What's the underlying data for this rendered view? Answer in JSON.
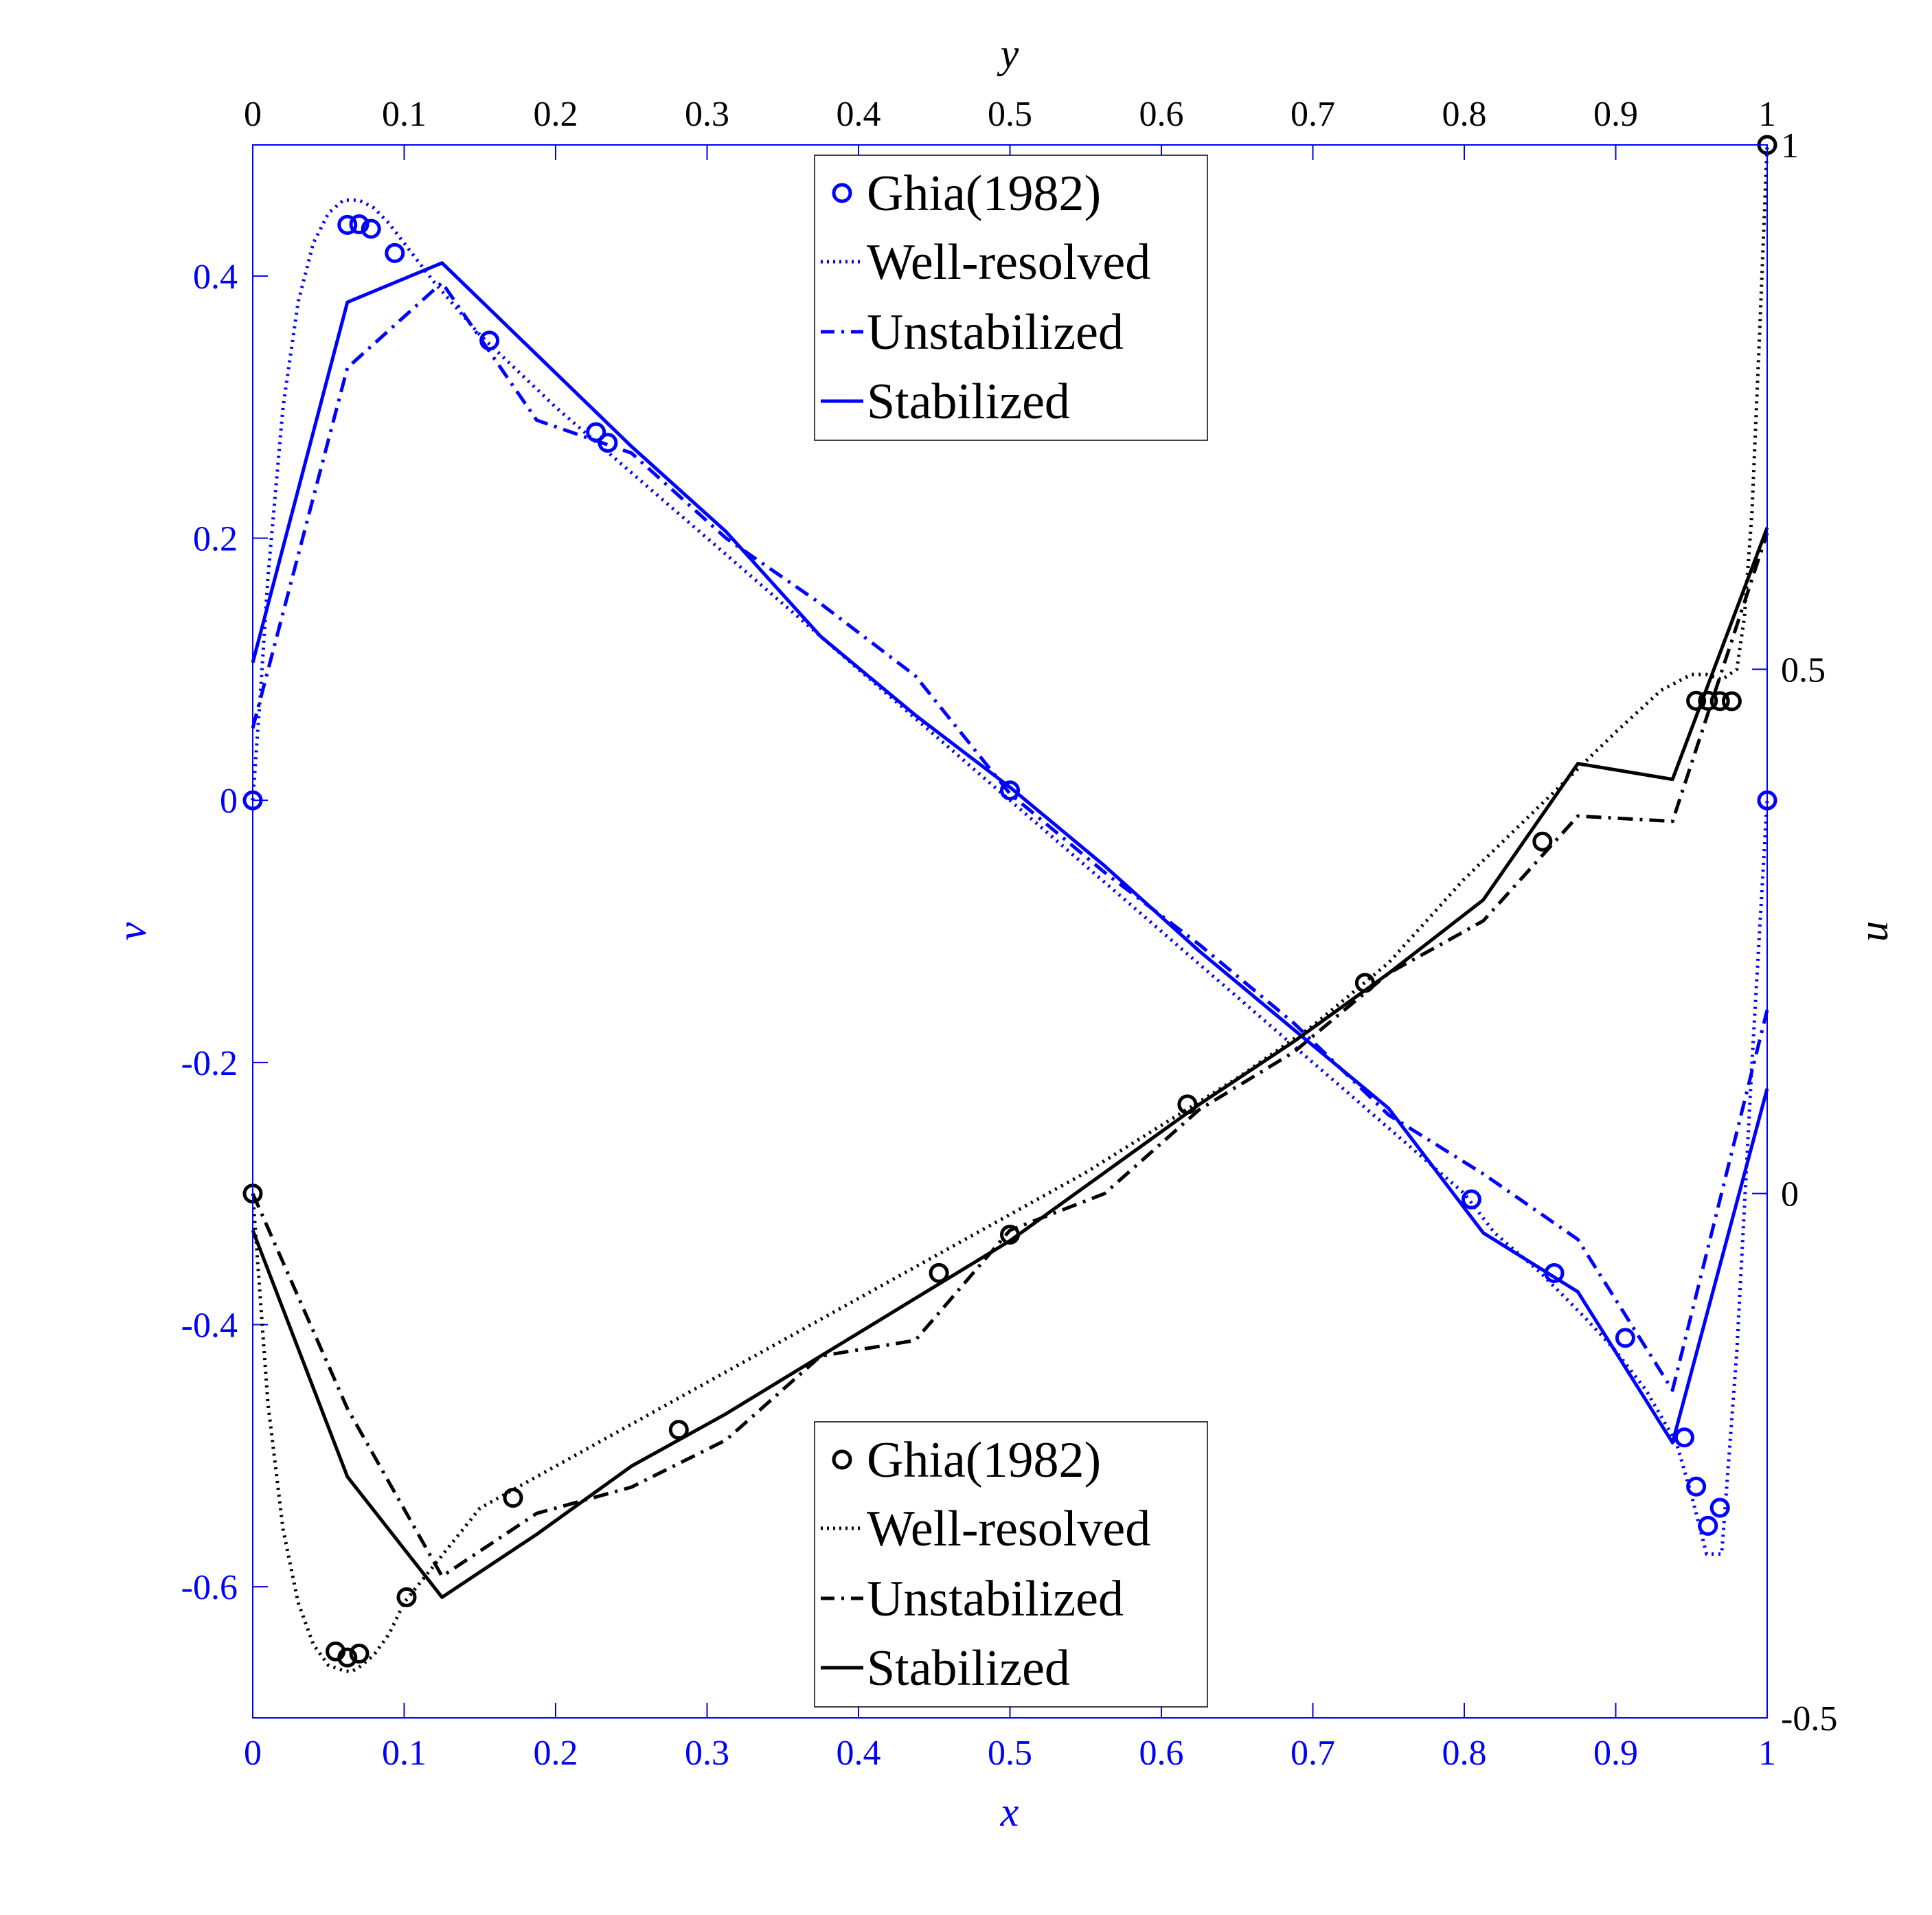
{
  "chart_data": {
    "type": "line",
    "grid": false,
    "colors": {
      "v_axis": "#0000ff",
      "u_axis": "#000000",
      "box": "#0000ff"
    },
    "axes": {
      "bottom": {
        "label": "x",
        "range": [
          0,
          1
        ],
        "ticks": [
          "0",
          "0.1",
          "0.2",
          "0.3",
          "0.4",
          "0.5",
          "0.6",
          "0.7",
          "0.8",
          "0.9",
          "1"
        ],
        "color": "#0000ff"
      },
      "left": {
        "label": "v",
        "range": [
          -0.7,
          0.5
        ],
        "ticks": [
          "-0.6",
          "-0.4",
          "-0.2",
          "0",
          "0.2",
          "0.4"
        ],
        "tick_values": [
          -0.6,
          -0.4,
          -0.2,
          0,
          0.2,
          0.4
        ],
        "color": "#0000ff"
      },
      "top": {
        "label": "y",
        "range": [
          0,
          1
        ],
        "ticks": [
          "0",
          "0.1",
          "0.2",
          "0.3",
          "0.4",
          "0.5",
          "0.6",
          "0.7",
          "0.8",
          "0.9",
          "1"
        ],
        "color": "#000000"
      },
      "right": {
        "label": "u",
        "range": [
          -0.5,
          1
        ],
        "ticks": [
          "-0.5",
          "0",
          "0.5",
          "1"
        ],
        "tick_values": [
          -0.5,
          0,
          0.5,
          1
        ],
        "color": "#000000"
      }
    },
    "legends": [
      {
        "placement": "top-center",
        "color": "#0000ff",
        "entries": [
          "Ghia(1982)",
          "Well-resolved",
          "Unstabilized",
          "Stabilized"
        ]
      },
      {
        "placement": "bottom-center",
        "color": "#000000",
        "entries": [
          "Ghia(1982)",
          "Well-resolved",
          "Unstabilized",
          "Stabilized"
        ]
      }
    ],
    "v_series": {
      "ghia": {
        "x": [
          0,
          0.0625,
          0.0703,
          0.0781,
          0.0938,
          0.1563,
          0.2266,
          0.2344,
          0.5,
          0.8047,
          0.8594,
          0.9063,
          0.9453,
          0.9531,
          0.9609,
          0.9688,
          1
        ],
        "y": [
          0,
          0.439,
          0.4395,
          0.436,
          0.4175,
          0.3507,
          0.2808,
          0.2728,
          0.0076,
          -0.3044,
          -0.3607,
          -0.4101,
          -0.4861,
          -0.5235,
          -0.5535,
          -0.5397,
          0
        ]
      },
      "well_resolved": {
        "x": [
          0,
          0.005,
          0.01,
          0.02,
          0.03,
          0.04,
          0.05,
          0.06,
          0.07,
          0.08,
          0.09,
          0.1,
          0.12,
          0.15,
          0.2,
          0.25,
          0.3,
          0.35,
          0.4,
          0.45,
          0.5,
          0.55,
          0.6,
          0.65,
          0.7,
          0.75,
          0.8,
          0.82,
          0.85,
          0.88,
          0.9,
          0.92,
          0.94,
          0.95,
          0.96,
          0.97,
          0.98,
          0.99,
          1
        ],
        "y": [
          0,
          0.08,
          0.17,
          0.3,
          0.38,
          0.425,
          0.448,
          0.458,
          0.458,
          0.452,
          0.44,
          0.425,
          0.395,
          0.355,
          0.3,
          0.25,
          0.2,
          0.15,
          0.1,
          0.05,
          0.0,
          -0.05,
          -0.1,
          -0.15,
          -0.2,
          -0.25,
          -0.3,
          -0.33,
          -0.36,
          -0.395,
          -0.42,
          -0.45,
          -0.49,
          -0.53,
          -0.575,
          -0.575,
          -0.42,
          -0.2,
          0
        ]
      },
      "unstabilized": {
        "x": [
          0,
          0.0625,
          0.125,
          0.1875,
          0.25,
          0.3125,
          0.375,
          0.4375,
          0.5,
          0.5625,
          0.625,
          0.6875,
          0.75,
          0.8125,
          0.875,
          0.9375,
          1
        ],
        "y": [
          0.055,
          0.33,
          0.395,
          0.29,
          0.265,
          0.2,
          0.15,
          0.095,
          0.005,
          -0.055,
          -0.11,
          -0.17,
          -0.24,
          -0.285,
          -0.335,
          -0.45,
          -0.16
        ]
      },
      "stabilized": {
        "x": [
          0,
          0.0625,
          0.125,
          0.1875,
          0.25,
          0.3125,
          0.375,
          0.4375,
          0.5,
          0.5625,
          0.625,
          0.6875,
          0.75,
          0.8125,
          0.875,
          0.9375,
          1
        ],
        "y": [
          0.105,
          0.38,
          0.41,
          0.34,
          0.27,
          0.205,
          0.125,
          0.065,
          0.01,
          -0.05,
          -0.115,
          -0.175,
          -0.235,
          -0.33,
          -0.375,
          -0.49,
          -0.22
        ]
      }
    },
    "u_series": {
      "ghia": {
        "x": [
          0,
          0.0547,
          0.0625,
          0.0703,
          0.1016,
          0.1719,
          0.2813,
          0.4531,
          0.5,
          0.6172,
          0.7344,
          0.8516,
          0.9531,
          0.9609,
          0.9688,
          0.9766,
          1
        ],
        "y": [
          0,
          -0.4366,
          -0.4424,
          -0.4387,
          -0.385,
          -0.2901,
          -0.2253,
          -0.0758,
          -0.0392,
          0.085,
          0.2009,
          0.3357,
          0.4699,
          0.4699,
          0.4696,
          0.4695,
          1
        ]
      },
      "well_resolved": {
        "x": [
          0,
          0.005,
          0.01,
          0.02,
          0.03,
          0.04,
          0.05,
          0.06,
          0.065,
          0.07,
          0.08,
          0.09,
          0.1,
          0.15,
          0.2,
          0.25,
          0.3,
          0.35,
          0.4,
          0.45,
          0.5,
          0.55,
          0.6,
          0.65,
          0.7,
          0.75,
          0.8,
          0.85,
          0.9,
          0.93,
          0.95,
          0.96,
          0.97,
          0.98,
          0.985,
          0.99,
          0.995,
          1
        ],
        "y": [
          0,
          -0.1,
          -0.2,
          -0.32,
          -0.39,
          -0.43,
          -0.45,
          -0.455,
          -0.456,
          -0.452,
          -0.44,
          -0.42,
          -0.39,
          -0.3,
          -0.26,
          -0.22,
          -0.18,
          -0.14,
          -0.1,
          -0.06,
          -0.02,
          0.02,
          0.065,
          0.11,
          0.16,
          0.22,
          0.3,
          0.37,
          0.44,
          0.48,
          0.495,
          0.495,
          0.49,
          0.5,
          0.55,
          0.65,
          0.82,
          1
        ]
      },
      "unstabilized": {
        "x": [
          0,
          0.0625,
          0.125,
          0.1875,
          0.25,
          0.3125,
          0.375,
          0.4375,
          0.5,
          0.5625,
          0.625,
          0.6875,
          0.75,
          0.8125,
          0.875,
          0.9375,
          1
        ],
        "y": [
          0,
          -0.205,
          -0.365,
          -0.305,
          -0.28,
          -0.235,
          -0.155,
          -0.14,
          -0.035,
          0,
          0.08,
          0.135,
          0.21,
          0.26,
          0.36,
          0.355,
          0.63
        ]
      },
      "stabilized": {
        "x": [
          0,
          0.0625,
          0.125,
          0.1875,
          0.25,
          0.3125,
          0.375,
          0.4375,
          0.5,
          0.5625,
          0.625,
          0.6875,
          0.75,
          0.8125,
          0.875,
          0.9375,
          1
        ],
        "y": [
          -0.035,
          -0.27,
          -0.385,
          -0.325,
          -0.26,
          -0.21,
          -0.155,
          -0.1,
          -0.045,
          0.02,
          0.085,
          0.145,
          0.21,
          0.28,
          0.41,
          0.395,
          0.635
        ]
      }
    }
  }
}
